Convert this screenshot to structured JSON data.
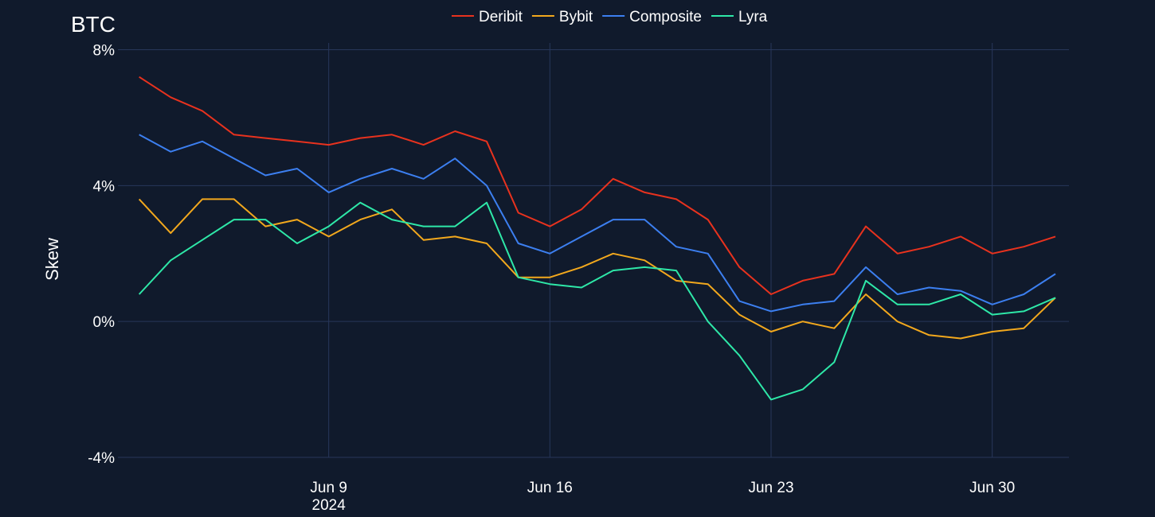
{
  "chart_data": {
    "type": "line",
    "title": "BTC",
    "y_label": "Skew",
    "x": [
      "2024-06-03",
      "2024-06-04",
      "2024-06-05",
      "2024-06-06",
      "2024-06-07",
      "2024-06-08",
      "2024-06-09",
      "2024-06-10",
      "2024-06-11",
      "2024-06-12",
      "2024-06-13",
      "2024-06-14",
      "2024-06-15",
      "2024-06-16",
      "2024-06-17",
      "2024-06-18",
      "2024-06-19",
      "2024-06-20",
      "2024-06-21",
      "2024-06-22",
      "2024-06-23",
      "2024-06-24",
      "2024-06-25",
      "2024-06-26",
      "2024-06-27",
      "2024-06-28",
      "2024-06-29",
      "2024-06-30",
      "2024-07-01",
      "2024-07-02"
    ],
    "series": [
      {
        "name": "Deribit",
        "color": "#e8321e",
        "values": [
          7.2,
          6.6,
          6.2,
          5.5,
          5.4,
          5.3,
          5.2,
          5.4,
          5.5,
          5.2,
          5.6,
          5.3,
          3.2,
          2.8,
          3.3,
          4.2,
          3.8,
          3.6,
          3.0,
          1.6,
          0.8,
          1.2,
          1.4,
          2.8,
          2.0,
          2.2,
          2.5,
          2.0,
          2.2,
          2.5
        ]
      },
      {
        "name": "Bybit",
        "color": "#f2a81d",
        "values": [
          3.6,
          2.6,
          3.6,
          3.6,
          2.8,
          3.0,
          2.5,
          3.0,
          3.3,
          2.4,
          2.5,
          2.3,
          1.3,
          1.3,
          1.6,
          2.0,
          1.8,
          1.2,
          1.1,
          0.2,
          -0.3,
          0.0,
          -0.2,
          0.8,
          0.0,
          -0.4,
          -0.5,
          -0.3,
          -0.2,
          0.7
        ]
      },
      {
        "name": "Composite",
        "color": "#3c7ff0",
        "values": [
          5.5,
          5.0,
          5.3,
          4.8,
          4.3,
          4.5,
          3.8,
          4.2,
          4.5,
          4.2,
          4.8,
          4.0,
          2.3,
          2.0,
          2.5,
          3.0,
          3.0,
          2.2,
          2.0,
          0.6,
          0.3,
          0.5,
          0.6,
          1.6,
          0.8,
          1.0,
          0.9,
          0.5,
          0.8,
          1.4
        ]
      },
      {
        "name": "Lyra",
        "color": "#2ee8a8",
        "values": [
          0.8,
          1.8,
          2.4,
          3.0,
          3.0,
          2.3,
          2.8,
          3.5,
          3.0,
          2.8,
          2.8,
          3.5,
          1.3,
          1.1,
          1.0,
          1.5,
          1.6,
          1.5,
          0.0,
          -1.0,
          -2.3,
          -2.0,
          -1.2,
          1.2,
          0.5,
          0.5,
          0.8,
          0.2,
          0.3,
          0.7
        ]
      }
    ],
    "xlim": [
      "2024-06-02",
      "2024-07-02"
    ],
    "xticks": [
      {
        "value": "2024-06-09",
        "label": "Jun 9\n2024"
      },
      {
        "value": "2024-06-16",
        "label": "Jun 16"
      },
      {
        "value": "2024-06-23",
        "label": "Jun 23"
      },
      {
        "value": "2024-06-30",
        "label": "Jun 30"
      }
    ],
    "ylim": [
      -4,
      8.2
    ],
    "yticks": [
      {
        "value": 8,
        "label": "8%"
      },
      {
        "value": 4,
        "label": "4%"
      },
      {
        "value": 0,
        "label": "0%"
      },
      {
        "value": -4,
        "label": "-4%"
      }
    ],
    "grid": true,
    "legend": "top"
  }
}
